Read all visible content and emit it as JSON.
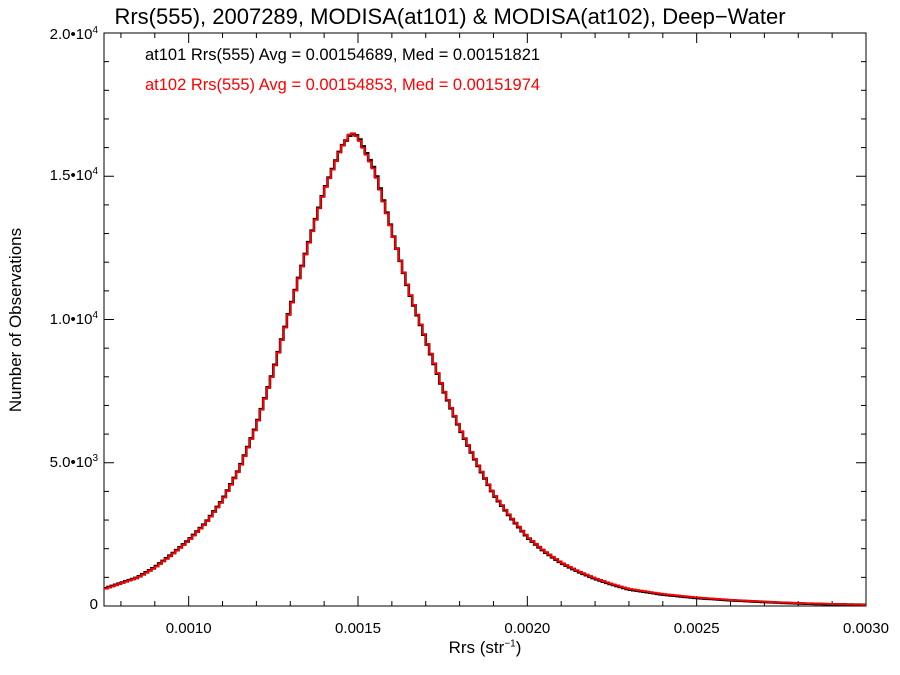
{
  "chart_data": {
    "type": "line",
    "title": "Rrs(555), 2007289, MODISA(at101) & MODISA(at102), Deep−Water",
    "xlabel_base": "Rrs (str",
    "xlabel_sup": "−1",
    "xlabel_end": ")",
    "ylabel": "Number of Observations",
    "xlim": [
      0.00075,
      0.003
    ],
    "ylim": [
      0,
      20000
    ],
    "xticks": [
      {
        "value": 0.001,
        "label": "0.0010"
      },
      {
        "value": 0.0015,
        "label": "0.0015"
      },
      {
        "value": 0.002,
        "label": "0.0020"
      },
      {
        "value": 0.0025,
        "label": "0.0025"
      },
      {
        "value": 0.003,
        "label": "0.0030"
      }
    ],
    "yticks": [
      {
        "value": 0,
        "base": "0",
        "exp": ""
      },
      {
        "value": 5000,
        "base": "5.0•10",
        "exp": "3"
      },
      {
        "value": 10000,
        "base": "1.0•10",
        "exp": "4"
      },
      {
        "value": 15000,
        "base": "1.5•10",
        "exp": "4"
      },
      {
        "value": 20000,
        "base": "2.0•10",
        "exp": "4"
      }
    ],
    "grid": false,
    "series": [
      {
        "name": "at101",
        "color": "#000000",
        "annotation": "at101 Rrs(555) Avg = 0.00154689, Med = 0.00151821",
        "x": [
          0.00075,
          0.0008,
          0.00085,
          0.0009,
          0.00095,
          0.001,
          0.00105,
          0.0011,
          0.00115,
          0.0012,
          0.00125,
          0.0013,
          0.00135,
          0.0014,
          0.00145,
          0.00148,
          0.0015,
          0.00155,
          0.0016,
          0.00165,
          0.0017,
          0.00175,
          0.0018,
          0.00185,
          0.0019,
          0.00195,
          0.002,
          0.00205,
          0.0021,
          0.00215,
          0.0022,
          0.00225,
          0.0023,
          0.0024,
          0.0025,
          0.0026,
          0.0027,
          0.0028,
          0.0029,
          0.003
        ],
        "y": [
          600,
          800,
          1000,
          1350,
          1800,
          2300,
          2900,
          3700,
          4800,
          6300,
          8200,
          10400,
          12500,
          14500,
          16000,
          16500,
          16400,
          15200,
          13100,
          11000,
          9300,
          7600,
          6200,
          5000,
          3900,
          3100,
          2400,
          1900,
          1500,
          1200,
          950,
          750,
          580,
          400,
          280,
          200,
          140,
          90,
          60,
          40
        ]
      },
      {
        "name": "at102",
        "color": "#ff0000",
        "annotation": "at102 Rrs(555) Avg = 0.00154853, Med = 0.00151974",
        "x": [
          0.00075,
          0.0008,
          0.00085,
          0.0009,
          0.00095,
          0.001,
          0.00105,
          0.0011,
          0.00115,
          0.0012,
          0.00125,
          0.0013,
          0.00135,
          0.0014,
          0.00145,
          0.00148,
          0.0015,
          0.00155,
          0.0016,
          0.00165,
          0.0017,
          0.00175,
          0.0018,
          0.00185,
          0.0019,
          0.00195,
          0.002,
          0.00205,
          0.0021,
          0.00215,
          0.0022,
          0.00225,
          0.0023,
          0.0024,
          0.0025,
          0.0026,
          0.0027,
          0.0028,
          0.0029,
          0.003
        ],
        "y": [
          580,
          790,
          990,
          1330,
          1780,
          2280,
          2880,
          3680,
          4780,
          6280,
          8180,
          10380,
          12480,
          14480,
          15980,
          16550,
          16350,
          15150,
          13080,
          11020,
          9320,
          7620,
          6220,
          5020,
          3920,
          3120,
          2420,
          1920,
          1520,
          1220,
          970,
          770,
          600,
          420,
          300,
          210,
          150,
          100,
          70,
          40
        ]
      }
    ]
  }
}
